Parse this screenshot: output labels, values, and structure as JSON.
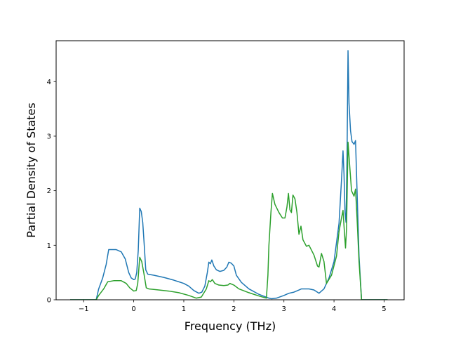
{
  "chart_data": {
    "type": "line",
    "title": "",
    "xlabel": "Frequency (THz)",
    "ylabel": "Partial Density of States",
    "xlim": [
      -1.55,
      5.4
    ],
    "ylim": [
      0,
      4.75
    ],
    "xticks": [
      -1,
      0,
      1,
      2,
      3,
      4,
      5
    ],
    "yticks": [
      0,
      1,
      2,
      3,
      4
    ],
    "xtick_labels": [
      "−1",
      "0",
      "1",
      "2",
      "3",
      "4",
      "5"
    ],
    "ytick_labels": [
      "0",
      "1",
      "2",
      "3",
      "4"
    ],
    "grid": false,
    "legend": false,
    "series": [
      {
        "color": "#1f77b4",
        "points": [
          [
            -1.27,
            0
          ],
          [
            -0.75,
            0
          ],
          [
            -0.7,
            0.2
          ],
          [
            -0.62,
            0.4
          ],
          [
            -0.55,
            0.65
          ],
          [
            -0.5,
            0.92
          ],
          [
            -0.35,
            0.92
          ],
          [
            -0.25,
            0.88
          ],
          [
            -0.17,
            0.75
          ],
          [
            -0.1,
            0.5
          ],
          [
            -0.05,
            0.4
          ],
          [
            0.0,
            0.37
          ],
          [
            0.03,
            0.38
          ],
          [
            0.06,
            0.5
          ],
          [
            0.09,
            0.9
          ],
          [
            0.12,
            1.68
          ],
          [
            0.15,
            1.62
          ],
          [
            0.18,
            1.42
          ],
          [
            0.21,
            1.0
          ],
          [
            0.24,
            0.55
          ],
          [
            0.28,
            0.47
          ],
          [
            0.4,
            0.45
          ],
          [
            0.6,
            0.41
          ],
          [
            0.8,
            0.36
          ],
          [
            1.0,
            0.3
          ],
          [
            1.1,
            0.25
          ],
          [
            1.2,
            0.17
          ],
          [
            1.3,
            0.12
          ],
          [
            1.36,
            0.14
          ],
          [
            1.42,
            0.25
          ],
          [
            1.47,
            0.5
          ],
          [
            1.5,
            0.69
          ],
          [
            1.53,
            0.66
          ],
          [
            1.56,
            0.73
          ],
          [
            1.6,
            0.62
          ],
          [
            1.65,
            0.55
          ],
          [
            1.72,
            0.52
          ],
          [
            1.8,
            0.54
          ],
          [
            1.86,
            0.6
          ],
          [
            1.9,
            0.69
          ],
          [
            1.95,
            0.67
          ],
          [
            2.0,
            0.62
          ],
          [
            2.05,
            0.45
          ],
          [
            2.15,
            0.32
          ],
          [
            2.3,
            0.2
          ],
          [
            2.5,
            0.1
          ],
          [
            2.7,
            0.03
          ],
          [
            2.75,
            0.02
          ],
          [
            2.85,
            0.03
          ],
          [
            3.0,
            0.08
          ],
          [
            3.1,
            0.12
          ],
          [
            3.2,
            0.14
          ],
          [
            3.3,
            0.18
          ],
          [
            3.35,
            0.2
          ],
          [
            3.5,
            0.2
          ],
          [
            3.6,
            0.18
          ],
          [
            3.7,
            0.12
          ],
          [
            3.8,
            0.2
          ],
          [
            3.9,
            0.4
          ],
          [
            4.0,
            0.7
          ],
          [
            4.1,
            1.4
          ],
          [
            4.15,
            2.2
          ],
          [
            4.18,
            2.73
          ],
          [
            4.2,
            2.3
          ],
          [
            4.22,
            1.6
          ],
          [
            4.24,
            1.42
          ],
          [
            4.26,
            2.6
          ],
          [
            4.28,
            4.57
          ],
          [
            4.3,
            3.6
          ],
          [
            4.33,
            3.1
          ],
          [
            4.36,
            2.9
          ],
          [
            4.4,
            2.85
          ],
          [
            4.43,
            2.92
          ],
          [
            4.46,
            2.0
          ],
          [
            4.5,
            0.8
          ],
          [
            4.55,
            0
          ],
          [
            5.07,
            0
          ]
        ]
      },
      {
        "color": "#2ca02c",
        "points": [
          [
            -1.27,
            0
          ],
          [
            -0.75,
            0
          ],
          [
            -0.7,
            0.08
          ],
          [
            -0.6,
            0.2
          ],
          [
            -0.52,
            0.33
          ],
          [
            -0.4,
            0.35
          ],
          [
            -0.25,
            0.35
          ],
          [
            -0.15,
            0.3
          ],
          [
            -0.08,
            0.22
          ],
          [
            0.0,
            0.16
          ],
          [
            0.05,
            0.17
          ],
          [
            0.08,
            0.3
          ],
          [
            0.12,
            0.78
          ],
          [
            0.16,
            0.7
          ],
          [
            0.2,
            0.5
          ],
          [
            0.25,
            0.22
          ],
          [
            0.3,
            0.2
          ],
          [
            0.5,
            0.18
          ],
          [
            0.7,
            0.16
          ],
          [
            0.9,
            0.13
          ],
          [
            1.1,
            0.08
          ],
          [
            1.25,
            0.03
          ],
          [
            1.35,
            0.05
          ],
          [
            1.45,
            0.2
          ],
          [
            1.5,
            0.35
          ],
          [
            1.53,
            0.33
          ],
          [
            1.57,
            0.37
          ],
          [
            1.62,
            0.3
          ],
          [
            1.7,
            0.27
          ],
          [
            1.8,
            0.26
          ],
          [
            1.88,
            0.27
          ],
          [
            1.92,
            0.3
          ],
          [
            2.0,
            0.27
          ],
          [
            2.1,
            0.2
          ],
          [
            2.3,
            0.13
          ],
          [
            2.5,
            0.07
          ],
          [
            2.65,
            0.03
          ],
          [
            2.68,
            0.45
          ],
          [
            2.7,
            1.0
          ],
          [
            2.74,
            1.6
          ],
          [
            2.77,
            1.95
          ],
          [
            2.82,
            1.75
          ],
          [
            2.9,
            1.6
          ],
          [
            2.97,
            1.5
          ],
          [
            3.02,
            1.5
          ],
          [
            3.06,
            1.7
          ],
          [
            3.09,
            1.95
          ],
          [
            3.12,
            1.65
          ],
          [
            3.15,
            1.6
          ],
          [
            3.18,
            1.92
          ],
          [
            3.22,
            1.85
          ],
          [
            3.26,
            1.6
          ],
          [
            3.3,
            1.2
          ],
          [
            3.34,
            1.35
          ],
          [
            3.38,
            1.1
          ],
          [
            3.45,
            0.98
          ],
          [
            3.5,
            1.0
          ],
          [
            3.6,
            0.82
          ],
          [
            3.67,
            0.62
          ],
          [
            3.7,
            0.6
          ],
          [
            3.75,
            0.85
          ],
          [
            3.8,
            0.7
          ],
          [
            3.85,
            0.3
          ],
          [
            3.95,
            0.45
          ],
          [
            4.05,
            0.8
          ],
          [
            4.1,
            1.25
          ],
          [
            4.15,
            1.5
          ],
          [
            4.18,
            1.64
          ],
          [
            4.2,
            1.35
          ],
          [
            4.23,
            0.95
          ],
          [
            4.25,
            1.3
          ],
          [
            4.28,
            2.89
          ],
          [
            4.31,
            2.5
          ],
          [
            4.35,
            2.0
          ],
          [
            4.4,
            1.9
          ],
          [
            4.43,
            2.03
          ],
          [
            4.46,
            1.5
          ],
          [
            4.5,
            0.7
          ],
          [
            4.55,
            0
          ],
          [
            5.07,
            0
          ]
        ]
      }
    ]
  }
}
